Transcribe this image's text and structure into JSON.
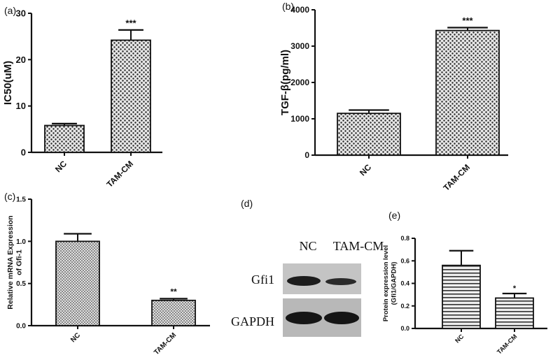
{
  "colors": {
    "ink": "#111111",
    "bar_face": "#d8d8d8",
    "blot_bg": "#bdbdbd",
    "blot_band": "#1a1a1a"
  },
  "chart_data": [
    {
      "id": "a",
      "panel_label": "(a)",
      "type": "bar",
      "categories": [
        "NC",
        "TAM-CM"
      ],
      "values": [
        5.8,
        24.2
      ],
      "errors": [
        0.4,
        2.2
      ],
      "significance": [
        "",
        "***"
      ],
      "ylabel": "IC50(uM)",
      "ylim": [
        0,
        30
      ],
      "yticks": [
        0,
        10,
        20,
        30
      ],
      "pattern": "dots"
    },
    {
      "id": "b",
      "panel_label": "(b)",
      "type": "bar",
      "categories": [
        "NC",
        "TAM-CM"
      ],
      "values": [
        1150,
        3430
      ],
      "errors": [
        90,
        80
      ],
      "significance": [
        "",
        "***"
      ],
      "ylabel": "TGF-β(pg/ml)",
      "ylim": [
        0,
        4000
      ],
      "yticks": [
        0,
        1000,
        2000,
        3000,
        4000
      ],
      "pattern": "dots"
    },
    {
      "id": "c",
      "panel_label": "(c)",
      "type": "bar",
      "categories": [
        "NC",
        "TAM-CM"
      ],
      "values": [
        1.0,
        0.3
      ],
      "errors": [
        0.09,
        0.02
      ],
      "significance": [
        "",
        "**"
      ],
      "ylabel_lines": [
        "Relative mRNA Expression",
        "of Gfi-1"
      ],
      "ylim": [
        0,
        1.5
      ],
      "yticks": [
        "0.0",
        "0.5",
        "1.0",
        "1.5"
      ],
      "pattern": "dots"
    },
    {
      "id": "e",
      "panel_label": "(e)",
      "type": "bar",
      "categories": [
        "NC",
        "TAM-CM"
      ],
      "values": [
        0.56,
        0.27
      ],
      "errors": [
        0.13,
        0.04
      ],
      "significance": [
        "",
        "*"
      ],
      "ylabel_lines": [
        "Protein expression level",
        "(Gfi1/GAPDH)"
      ],
      "ylim": [
        0,
        0.8
      ],
      "yticks": [
        "0.0",
        "0.2",
        "0.4",
        "0.6",
        "0.8"
      ],
      "pattern": "stripes"
    }
  ],
  "blot": {
    "panel_label": "(d)",
    "lanes": [
      "NC",
      "TAM-CM"
    ],
    "rows": [
      "Gfi1",
      "GAPDH"
    ]
  }
}
